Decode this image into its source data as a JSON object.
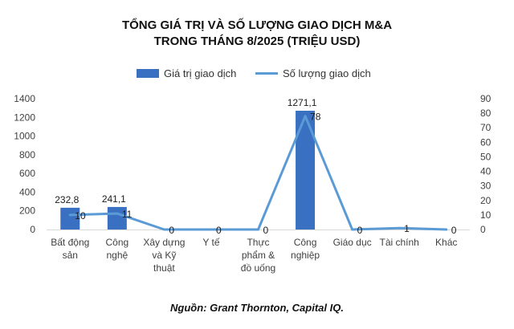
{
  "title_line1": "TỔNG GIÁ TRỊ VÀ SỐ LƯỢNG GIAO DỊCH M&A",
  "title_line2": "TRONG THÁNG 8/2025 (TRIỆU USD)",
  "source": "Nguồn: Grant Thornton, Capital IQ.",
  "colors": {
    "bar": "#3a70c2",
    "line": "#5b9bd5"
  },
  "chart_data": {
    "type": "bar",
    "categories": [
      [
        "Bất động",
        "sản"
      ],
      [
        "Công",
        "nghệ"
      ],
      [
        "Xây dựng",
        "và Kỹ",
        "thuật"
      ],
      [
        "Y tế"
      ],
      [
        "Thực",
        "phẩm &",
        "đồ uống"
      ],
      [
        "Công",
        "nghiệp"
      ],
      [
        "Giáo dục"
      ],
      [
        "Tài chính"
      ],
      [
        "Khác"
      ]
    ],
    "series": [
      {
        "name": "Giá trị giao dịch",
        "type": "bar",
        "axis": "left",
        "values": [
          232.8,
          241.1,
          0,
          0,
          0,
          1271.1,
          0,
          0,
          0
        ],
        "labels": [
          "232,8",
          "241,1",
          "",
          "",
          "",
          "1271,1",
          "",
          "",
          ""
        ]
      },
      {
        "name": "Số lượng giao dịch",
        "type": "line",
        "axis": "right",
        "values": [
          10,
          11,
          0,
          0,
          0,
          78,
          0,
          1,
          0
        ],
        "labels": [
          "10",
          "11",
          "0",
          "0",
          "0",
          "78",
          "0",
          "1",
          "0"
        ]
      }
    ],
    "y_left": {
      "min": 0,
      "max": 1400,
      "ticks": [
        0,
        200,
        400,
        600,
        800,
        1000,
        1200,
        1400
      ]
    },
    "y_right": {
      "min": 0,
      "max": 90,
      "ticks": [
        0,
        10,
        20,
        30,
        40,
        50,
        60,
        70,
        80,
        90
      ]
    },
    "grid": false,
    "legend_position": "top"
  }
}
